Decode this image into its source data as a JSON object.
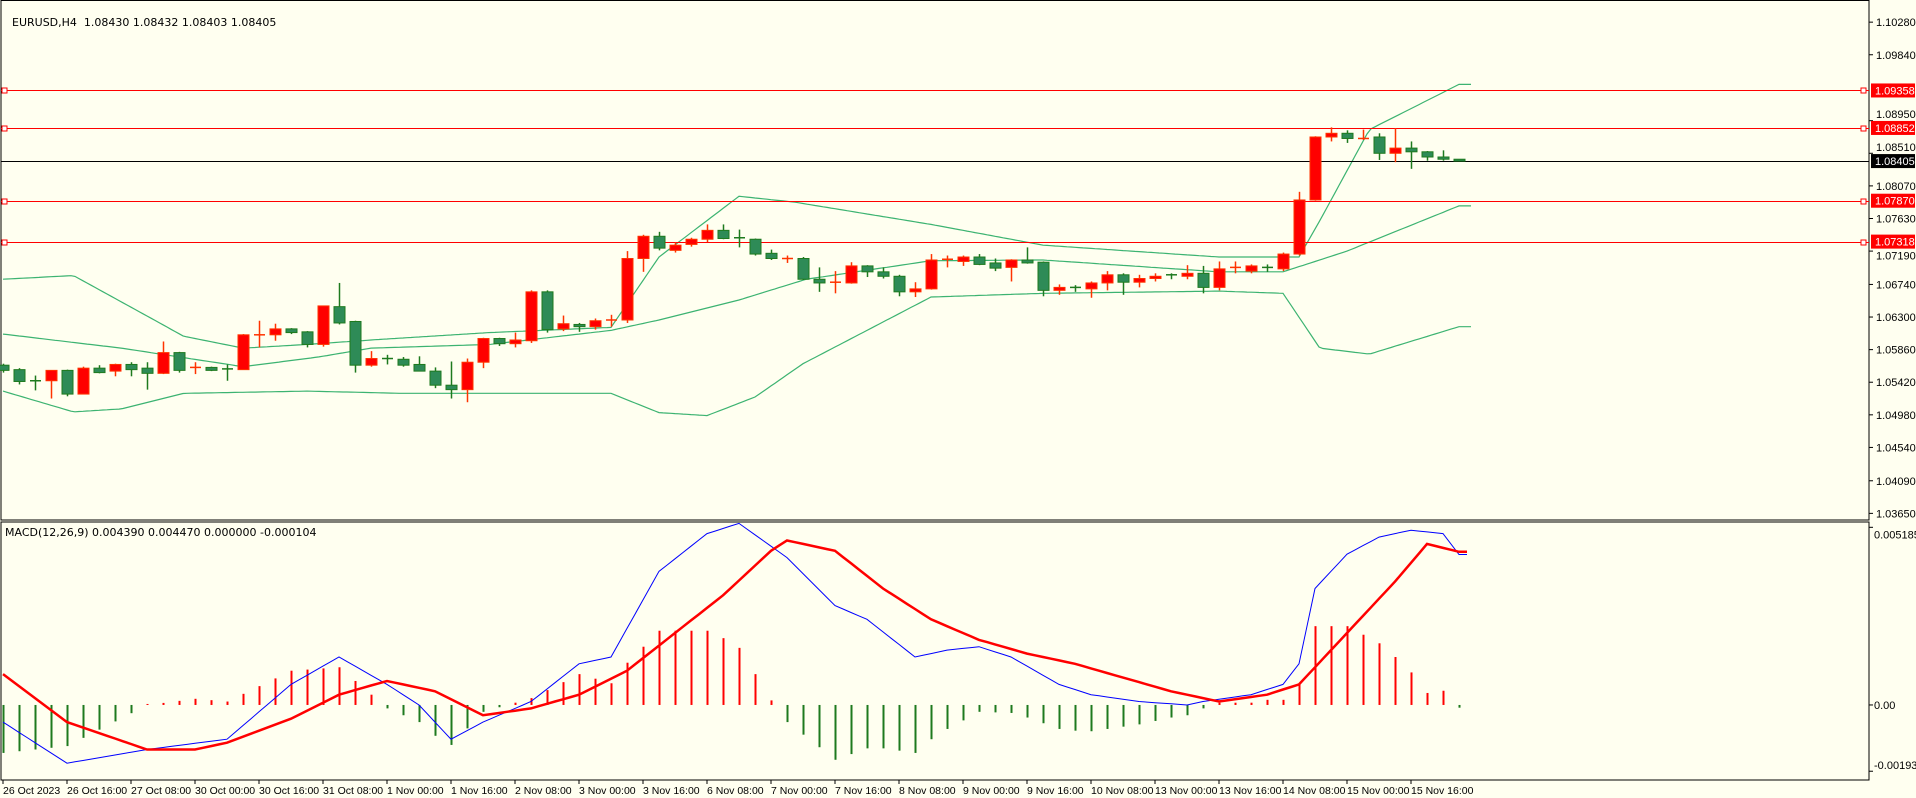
{
  "header": {
    "symbol": "EURUSD,H4",
    "ohlc": "1.08430 1.08432 1.08403 1.08405"
  },
  "macd_header": "MACD(12,26,9) 0.004390 0.004470 0.000000 -0.000104",
  "colors": {
    "background": "#fffff0",
    "bull": "#ff0000",
    "bull_border": "#ff3300",
    "bear": "#2e8b57",
    "bear_border": "#1e7a1e",
    "bands": "#3cb371",
    "level_line": "#ff0000",
    "price_line": "#000000",
    "macd_main": "#0000ff",
    "macd_signal": "#ff0000",
    "hist_pos": "#ff0000",
    "hist_neg": "#1e7a1e"
  },
  "chart_data": [
    {
      "type": "candlestick",
      "title": "EURUSD,H4",
      "ylim": [
        1.03574,
        1.10552
      ],
      "price_ticks": [
        "1.10280",
        "1.09840",
        "1.08950",
        "1.08510",
        "1.08070",
        "1.07630",
        "1.07190",
        "1.06740",
        "1.06300",
        "1.05860",
        "1.05420",
        "1.04980",
        "1.04540",
        "1.04090",
        "1.03650"
      ],
      "levels": [
        "1.09358",
        "1.08852",
        "1.07870",
        "1.07318"
      ],
      "current_price": "1.08405",
      "x_labels": [
        "26 Oct 2023",
        "26 Oct 16:00",
        "27 Oct 08:00",
        "30 Oct 00:00",
        "30 Oct 16:00",
        "31 Oct 08:00",
        "1 Nov 00:00",
        "1 Nov 16:00",
        "2 Nov 08:00",
        "3 Nov 00:00",
        "3 Nov 16:00",
        "6 Nov 08:00",
        "7 Nov 00:00",
        "7 Nov 16:00",
        "8 Nov 08:00",
        "9 Nov 00:00",
        "9 Nov 16:00",
        "10 Nov 08:00",
        "13 Nov 00:00",
        "13 Nov 16:00",
        "14 Nov 08:00",
        "15 Nov 00:00",
        "15 Nov 16:00"
      ],
      "x_label_every": 4,
      "ohlc": [
        [
          1.0565,
          1.0567,
          1.0555,
          1.0558
        ],
        [
          1.0559,
          1.0561,
          1.0539,
          1.0543
        ],
        [
          1.0544,
          1.0551,
          1.0531,
          1.0543
        ],
        [
          1.0544,
          1.0558,
          1.052,
          1.0558
        ],
        [
          1.0558,
          1.0559,
          1.0523,
          1.0526
        ],
        [
          1.0526,
          1.0563,
          1.0526,
          1.0561
        ],
        [
          1.0561,
          1.0565,
          1.0554,
          1.0555
        ],
        [
          1.0557,
          1.0567,
          1.055,
          1.0566
        ],
        [
          1.0566,
          1.0569,
          1.055,
          1.0559
        ],
        [
          1.0561,
          1.0569,
          1.0532,
          1.0554
        ],
        [
          1.0554,
          1.0597,
          1.0553,
          1.0582
        ],
        [
          1.0582,
          1.0583,
          1.0555,
          1.0558
        ],
        [
          1.0561,
          1.0569,
          1.0553,
          1.0562
        ],
        [
          1.0562,
          1.0563,
          1.0557,
          1.0558
        ],
        [
          1.056,
          1.0566,
          1.0544,
          1.0559
        ],
        [
          1.0559,
          1.0607,
          1.0559,
          1.0606
        ],
        [
          1.0605,
          1.0625,
          1.0589,
          1.0606
        ],
        [
          1.0606,
          1.0621,
          1.0598,
          1.0614
        ],
        [
          1.0614,
          1.0615,
          1.0607,
          1.0609
        ],
        [
          1.061,
          1.0611,
          1.0589,
          1.0593
        ],
        [
          1.0593,
          1.0645,
          1.059,
          1.0645
        ],
        [
          1.0644,
          1.0676,
          1.062,
          1.0622
        ],
        [
          1.0624,
          1.0625,
          1.0555,
          1.0565
        ],
        [
          1.0565,
          1.0584,
          1.0563,
          1.0574
        ],
        [
          1.0574,
          1.0579,
          1.0566,
          1.0572
        ],
        [
          1.0573,
          1.0576,
          1.0563,
          1.0565
        ],
        [
          1.0566,
          1.0577,
          1.0557,
          1.0557
        ],
        [
          1.0557,
          1.0562,
          1.0534,
          1.0538
        ],
        [
          1.0538,
          1.057,
          1.052,
          1.0532
        ],
        [
          1.0532,
          1.0574,
          1.0515,
          1.0569
        ],
        [
          1.0569,
          1.0602,
          1.0561,
          1.0601
        ],
        [
          1.0601,
          1.0602,
          1.0591,
          1.0594
        ],
        [
          1.0594,
          1.0609,
          1.0589,
          1.0599
        ],
        [
          1.0598,
          1.0666,
          1.0595,
          1.0664
        ],
        [
          1.0664,
          1.0666,
          1.0609,
          1.0613
        ],
        [
          1.0614,
          1.0632,
          1.0611,
          1.0621
        ],
        [
          1.062,
          1.0622,
          1.061,
          1.0617
        ],
        [
          1.0617,
          1.0628,
          1.0613,
          1.0625
        ],
        [
          1.0625,
          1.0633,
          1.0617,
          1.0626
        ],
        [
          1.0626,
          1.0719,
          1.0622,
          1.0709
        ],
        [
          1.0709,
          1.0741,
          1.0691,
          1.0739
        ],
        [
          1.0739,
          1.0745,
          1.072,
          1.0723
        ],
        [
          1.072,
          1.0731,
          1.0717,
          1.0727
        ],
        [
          1.0728,
          1.0737,
          1.0725,
          1.0735
        ],
        [
          1.0735,
          1.0755,
          1.0731,
          1.0747
        ],
        [
          1.0747,
          1.0755,
          1.0735,
          1.0736
        ],
        [
          1.0737,
          1.0748,
          1.0724,
          1.0735
        ],
        [
          1.0735,
          1.0736,
          1.0713,
          1.0715
        ],
        [
          1.0716,
          1.0721,
          1.0707,
          1.0709
        ],
        [
          1.0708,
          1.0713,
          1.0703,
          1.0709
        ],
        [
          1.0709,
          1.0711,
          1.068,
          1.0681
        ],
        [
          1.0681,
          1.0697,
          1.0664,
          1.0676
        ],
        [
          1.0676,
          1.0692,
          1.0662,
          1.0677
        ],
        [
          1.0676,
          1.0704,
          1.0675,
          1.0699
        ],
        [
          1.0699,
          1.07,
          1.0684,
          1.0691
        ],
        [
          1.0691,
          1.0697,
          1.0682,
          1.0685
        ],
        [
          1.0685,
          1.0687,
          1.0658,
          1.0664
        ],
        [
          1.0664,
          1.0677,
          1.0657,
          1.0668
        ],
        [
          1.0668,
          1.0715,
          1.0667,
          1.0707
        ],
        [
          1.0707,
          1.0713,
          1.0697,
          1.0708
        ],
        [
          1.0705,
          1.0713,
          1.0699,
          1.0711
        ],
        [
          1.0711,
          1.0715,
          1.07,
          1.0701
        ],
        [
          1.0703,
          1.0709,
          1.0692,
          1.0696
        ],
        [
          1.0697,
          1.0708,
          1.0678,
          1.0707
        ],
        [
          1.0707,
          1.0724,
          1.0702,
          1.0703
        ],
        [
          1.0704,
          1.0705,
          1.0658,
          1.0666
        ],
        [
          1.0666,
          1.0674,
          1.066,
          1.067
        ],
        [
          1.067,
          1.0673,
          1.0664,
          1.0668
        ],
        [
          1.0668,
          1.0678,
          1.0656,
          1.0676
        ],
        [
          1.0676,
          1.0692,
          1.0666,
          1.0687
        ],
        [
          1.0687,
          1.0689,
          1.066,
          1.0677
        ],
        [
          1.0677,
          1.0687,
          1.067,
          1.0682
        ],
        [
          1.0682,
          1.0689,
          1.0678,
          1.0685
        ],
        [
          1.0687,
          1.0689,
          1.0681,
          1.0685
        ],
        [
          1.0685,
          1.07,
          1.0681,
          1.0689
        ],
        [
          1.0689,
          1.0699,
          1.0662,
          1.067
        ],
        [
          1.067,
          1.0705,
          1.0666,
          1.0695
        ],
        [
          1.0695,
          1.0705,
          1.0689,
          1.0697
        ],
        [
          1.0692,
          1.0701,
          1.0689,
          1.0699
        ],
        [
          1.0697,
          1.0701,
          1.0691,
          1.0695
        ],
        [
          1.0695,
          1.0717,
          1.0692,
          1.0715
        ],
        [
          1.0715,
          1.0799,
          1.0713,
          1.0788
        ],
        [
          1.0788,
          1.0874,
          1.0787,
          1.0873
        ],
        [
          1.0873,
          1.0886,
          1.0867,
          1.0878
        ],
        [
          1.0878,
          1.0882,
          1.0865,
          1.0871
        ],
        [
          1.087,
          1.0883,
          1.0869,
          1.0871
        ],
        [
          1.0873,
          1.0878,
          1.0842,
          1.0851
        ],
        [
          1.0851,
          1.0885,
          1.0839,
          1.0858
        ],
        [
          1.0858,
          1.0867,
          1.083,
          1.0853
        ],
        [
          1.0853,
          1.0854,
          1.0841,
          1.0846
        ],
        [
          1.0846,
          1.0855,
          1.0841,
          1.0843
        ],
        [
          1.0843,
          1.08432,
          1.08403,
          1.08405
        ]
      ],
      "bollinger": {
        "upper": [
          [
            0,
            1.0681
          ],
          [
            4.4,
            1.0686
          ],
          [
            11.3,
            1.0604
          ],
          [
            15,
            1.0588
          ],
          [
            19,
            1.0593
          ],
          [
            23,
            1.0599
          ],
          [
            30.4,
            1.0609
          ],
          [
            38,
            1.0616
          ],
          [
            41,
            1.0711
          ],
          [
            46,
            1.0793
          ],
          [
            49.5,
            1.0785
          ],
          [
            58,
            1.0755
          ],
          [
            65,
            1.0727
          ],
          [
            76,
            1.0711
          ],
          [
            81,
            1.0711
          ],
          [
            82.3,
            1.076
          ],
          [
            85.4,
            1.0883
          ],
          [
            91,
            1.0944
          ]
        ],
        "middle": [
          [
            0,
            1.0607
          ],
          [
            7.4,
            1.0588
          ],
          [
            15,
            1.0563
          ],
          [
            19.7,
            1.0576
          ],
          [
            23,
            1.0588
          ],
          [
            30.4,
            1.0593
          ],
          [
            38,
            1.0612
          ],
          [
            41,
            1.0626
          ],
          [
            46,
            1.0653
          ],
          [
            50.2,
            1.0681
          ],
          [
            58,
            1.0706
          ],
          [
            65,
            1.0707
          ],
          [
            76,
            1.0691
          ],
          [
            80,
            1.0691
          ],
          [
            84,
            1.0719
          ],
          [
            91,
            1.078
          ]
        ],
        "lower": [
          [
            0,
            1.053
          ],
          [
            4.4,
            1.0502
          ],
          [
            7.4,
            1.0506
          ],
          [
            11.3,
            1.0527
          ],
          [
            19,
            1.053
          ],
          [
            25,
            1.0527
          ],
          [
            38,
            1.0527
          ],
          [
            41,
            1.0501
          ],
          [
            44,
            1.0497
          ],
          [
            47,
            1.0522
          ],
          [
            50,
            1.0567
          ],
          [
            58,
            1.0657
          ],
          [
            65,
            1.0662
          ],
          [
            76,
            1.0665
          ],
          [
            80,
            1.0662
          ],
          [
            82.3,
            1.0588
          ],
          [
            85.4,
            1.058
          ],
          [
            91,
            1.0617
          ]
        ]
      }
    },
    {
      "type": "line",
      "title": "MACD(12,26,9)",
      "ylim": [
        -0.00219,
        0.00534
      ],
      "ticks": [
        "0.005185",
        "0.00",
        "-0.001934"
      ],
      "tick_values": [
        0.005185,
        0.0,
        -0.001934
      ],
      "main": [
        [
          0,
          -0.0005
        ],
        [
          4,
          -0.0017
        ],
        [
          9,
          -0.0013
        ],
        [
          14,
          -0.001
        ],
        [
          18,
          0.0006
        ],
        [
          21,
          0.0014
        ],
        [
          24,
          0.0006
        ],
        [
          26,
          0.0
        ],
        [
          28,
          -0.001
        ],
        [
          30,
          -0.0005
        ],
        [
          33,
          0.0001
        ],
        [
          36,
          0.0012
        ],
        [
          38,
          0.0014
        ],
        [
          41,
          0.0039
        ],
        [
          44,
          0.005
        ],
        [
          46,
          0.0053
        ],
        [
          49,
          0.0043
        ],
        [
          52,
          0.0029
        ],
        [
          54,
          0.0025
        ],
        [
          57,
          0.0014
        ],
        [
          59,
          0.0016
        ],
        [
          61,
          0.0017
        ],
        [
          63,
          0.0014
        ],
        [
          66,
          0.0006
        ],
        [
          68,
          0.0003
        ],
        [
          71,
          0.0001
        ],
        [
          74,
          0.0
        ],
        [
          75,
          0.0001
        ],
        [
          78,
          0.0003
        ],
        [
          80,
          0.0006
        ],
        [
          81,
          0.0012
        ],
        [
          82,
          0.0034
        ],
        [
          84,
          0.0044
        ],
        [
          86,
          0.0049
        ],
        [
          88,
          0.0051
        ],
        [
          90,
          0.005
        ],
        [
          91,
          0.00439
        ]
      ],
      "signal": [
        [
          0,
          0.0009
        ],
        [
          4,
          -0.0005
        ],
        [
          9,
          -0.0013
        ],
        [
          12,
          -0.0013
        ],
        [
          14,
          -0.0011
        ],
        [
          18,
          -0.0004
        ],
        [
          21,
          0.0003
        ],
        [
          24,
          0.0007
        ],
        [
          27,
          0.0004
        ],
        [
          30,
          -0.0003
        ],
        [
          33,
          -0.0001
        ],
        [
          36,
          0.0003
        ],
        [
          39,
          0.001
        ],
        [
          42,
          0.0021
        ],
        [
          45,
          0.0032
        ],
        [
          48,
          0.0045
        ],
        [
          49,
          0.0048
        ],
        [
          52,
          0.0045
        ],
        [
          55,
          0.0034
        ],
        [
          58,
          0.0025
        ],
        [
          61,
          0.0019
        ],
        [
          64,
          0.0015
        ],
        [
          67,
          0.0012
        ],
        [
          70,
          0.0008
        ],
        [
          73,
          0.0004
        ],
        [
          76,
          0.0001
        ],
        [
          79,
          0.0003
        ],
        [
          81,
          0.0006
        ],
        [
          84,
          0.0021
        ],
        [
          87,
          0.0036
        ],
        [
          89,
          0.0047
        ],
        [
          91,
          0.00447
        ]
      ]
    }
  ]
}
